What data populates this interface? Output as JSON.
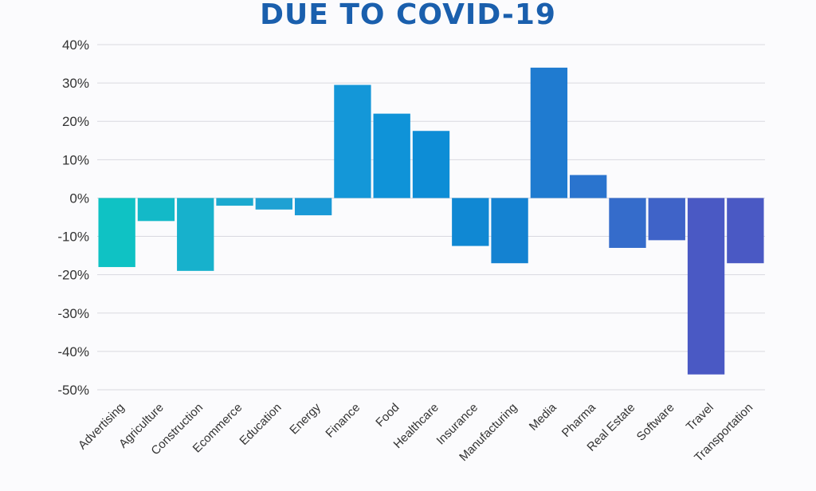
{
  "chart_data": {
    "type": "bar",
    "title": "DUE TO COVID-19",
    "xlabel": "",
    "ylabel": "",
    "ylim": [
      -50,
      40
    ],
    "yticks": [
      40,
      30,
      20,
      10,
      0,
      -10,
      -20,
      -30,
      -40,
      -50
    ],
    "ytick_labels": [
      "40%",
      "30%",
      "20%",
      "10%",
      "0%",
      "-10%",
      "-20%",
      "-30%",
      "-40%",
      "-50%"
    ],
    "grid": true,
    "categories": [
      "Advertising",
      "Agriculture",
      "Construction",
      "Ecommerce",
      "Education",
      "Energy",
      "Finance",
      "Food",
      "Healthcare",
      "Insurance",
      "Manufacturing",
      "Media",
      "Pharma",
      "Real Estate",
      "Software",
      "Travel",
      "Transportation"
    ],
    "values": [
      -18,
      -6,
      -19,
      -2,
      -3,
      -4.5,
      29.5,
      22,
      17.5,
      -12.5,
      -17,
      34,
      6,
      -13,
      -11,
      -46,
      -17
    ],
    "colors": [
      "#0fc2c4",
      "#13b9c8",
      "#17b1cc",
      "#1ba9cf",
      "#1fa1d3",
      "#1a99d6",
      "#1497d8",
      "#0f93d8",
      "#0d8dd6",
      "#1088d3",
      "#1482d1",
      "#1f7bd0",
      "#2a74ce",
      "#356ccb",
      "#3f63c8",
      "#4a59c4",
      "#4a59c4"
    ]
  }
}
